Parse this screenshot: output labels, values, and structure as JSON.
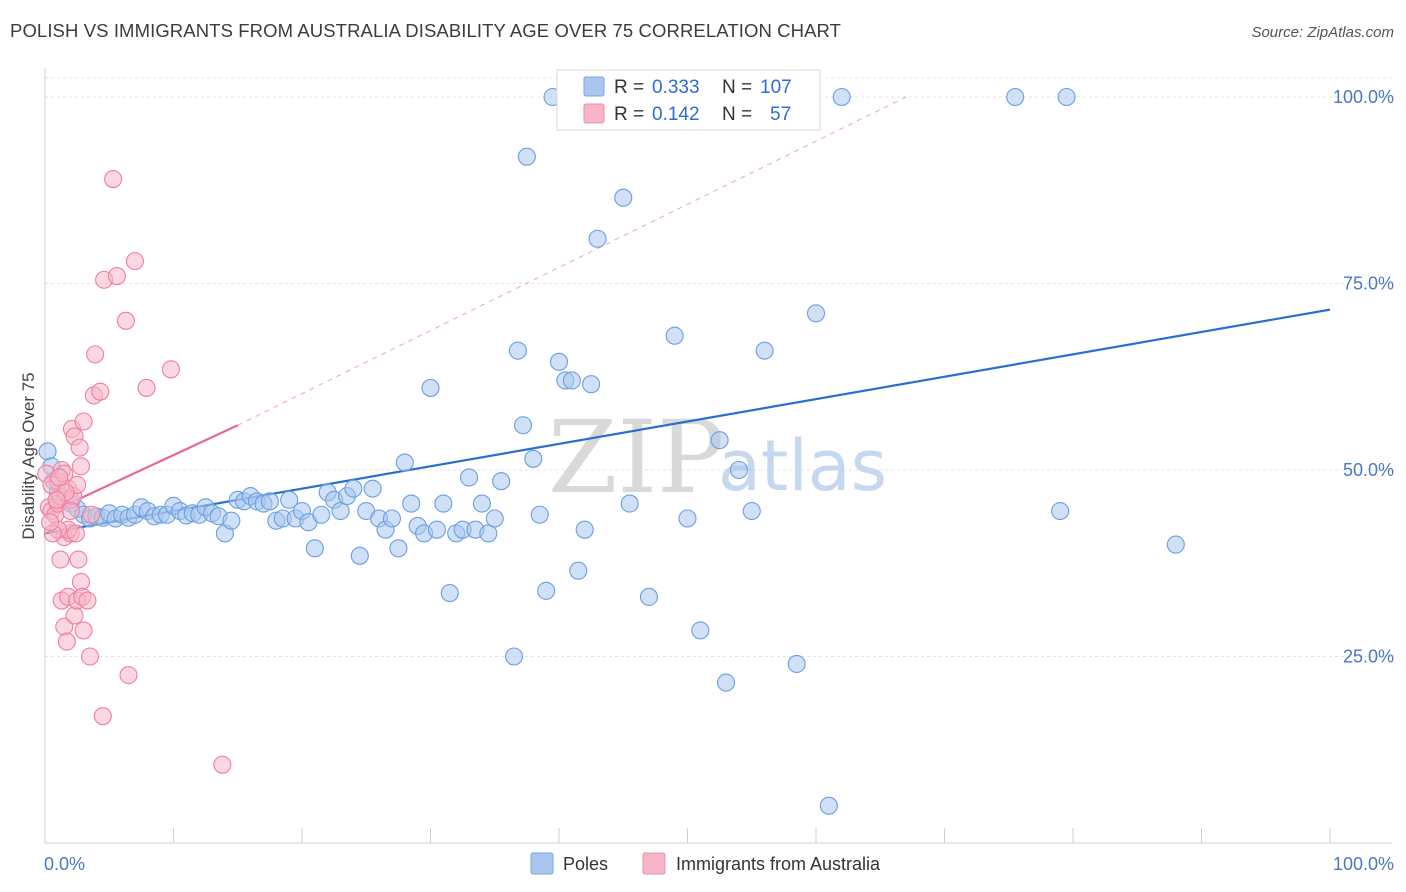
{
  "title": "POLISH VS IMMIGRANTS FROM AUSTRALIA DISABILITY AGE OVER 75 CORRELATION CHART",
  "source": "Source: ZipAtlas.com",
  "watermark": {
    "part1": "ZIP",
    "part2": "atlas"
  },
  "legend": {
    "r_label": "R =",
    "n_label": "N =",
    "rows": [
      {
        "r": "0.333",
        "n": "107",
        "color": "#a9c7ee"
      },
      {
        "r": "0.142",
        "n": "57",
        "color": "#f6b6c8"
      }
    ]
  },
  "bottom_legend": [
    {
      "label": "Poles",
      "color": "#a9c7ee"
    },
    {
      "label": "Immigrants from Australia",
      "color": "#f6b6c8"
    }
  ],
  "chart_data": {
    "type": "scatter",
    "title": "POLISH VS IMMIGRANTS FROM AUSTRALIA DISABILITY AGE OVER 75 CORRELATION CHART",
    "xlabel": "",
    "ylabel": "Disability Age Over 75",
    "xlim": [
      0,
      100
    ],
    "ylim": [
      0,
      100
    ],
    "x_tick_labels": [
      "0.0%",
      "100.0%"
    ],
    "y_tick_labels": [
      "100.0%",
      "75.0%",
      "50.0%",
      "25.0%"
    ],
    "y_tick_values": [
      100,
      75,
      50,
      25
    ],
    "grid": true,
    "series": [
      {
        "name": "Poles",
        "color": "#6a9fe0",
        "fill": "#a9c7ee",
        "trend": {
          "x": [
            0,
            100
          ],
          "y": [
            41.5,
            71.5
          ],
          "color": "#2a6fd0",
          "dashed_extension": false
        },
        "points": [
          [
            0.2,
            52.5
          ],
          [
            0.5,
            50.5
          ],
          [
            0.7,
            48.5
          ],
          [
            1.0,
            47.0
          ],
          [
            1.5,
            46.0
          ],
          [
            2.0,
            45.5
          ],
          [
            2.5,
            44.8
          ],
          [
            3.0,
            44.0
          ],
          [
            3.5,
            43.5
          ],
          [
            4.0,
            43.8
          ],
          [
            4.5,
            43.6
          ],
          [
            5.0,
            44.2
          ],
          [
            5.5,
            43.5
          ],
          [
            6.0,
            44.0
          ],
          [
            6.5,
            43.6
          ],
          [
            7.0,
            44.0
          ],
          [
            7.5,
            45.0
          ],
          [
            8.0,
            44.5
          ],
          [
            8.5,
            43.8
          ],
          [
            9.0,
            44.0
          ],
          [
            9.5,
            44.0
          ],
          [
            10.0,
            45.2
          ],
          [
            10.5,
            44.5
          ],
          [
            11.0,
            43.9
          ],
          [
            11.5,
            44.2
          ],
          [
            12.0,
            44.0
          ],
          [
            12.5,
            45.0
          ],
          [
            13.0,
            44.2
          ],
          [
            13.5,
            43.8
          ],
          [
            14.0,
            41.5
          ],
          [
            14.5,
            43.2
          ],
          [
            15.0,
            46.0
          ],
          [
            15.5,
            45.8
          ],
          [
            16.0,
            46.5
          ],
          [
            16.5,
            45.8
          ],
          [
            17.0,
            45.5
          ],
          [
            17.5,
            45.8
          ],
          [
            18.0,
            43.2
          ],
          [
            18.5,
            43.5
          ],
          [
            19.0,
            46.0
          ],
          [
            19.5,
            43.5
          ],
          [
            20.0,
            44.5
          ],
          [
            20.5,
            43.0
          ],
          [
            21.0,
            39.5
          ],
          [
            21.5,
            44.0
          ],
          [
            22.0,
            47.0
          ],
          [
            22.5,
            46.0
          ],
          [
            23.0,
            44.5
          ],
          [
            23.5,
            46.5
          ],
          [
            24.0,
            47.5
          ],
          [
            24.5,
            38.5
          ],
          [
            25.0,
            44.5
          ],
          [
            25.5,
            47.5
          ],
          [
            26.0,
            43.5
          ],
          [
            26.5,
            42.0
          ],
          [
            27.0,
            43.5
          ],
          [
            27.5,
            39.5
          ],
          [
            28.0,
            51.0
          ],
          [
            28.5,
            45.5
          ],
          [
            29.0,
            42.5
          ],
          [
            29.5,
            41.5
          ],
          [
            30.0,
            61.0
          ],
          [
            30.5,
            42.0
          ],
          [
            31.0,
            45.5
          ],
          [
            31.5,
            33.5
          ],
          [
            32.0,
            41.5
          ],
          [
            32.5,
            42.0
          ],
          [
            33.0,
            49.0
          ],
          [
            33.5,
            42.0
          ],
          [
            34.0,
            45.5
          ],
          [
            34.5,
            41.5
          ],
          [
            35.0,
            43.5
          ],
          [
            35.5,
            48.5
          ],
          [
            36.5,
            25.0
          ],
          [
            36.8,
            66.0
          ],
          [
            37.2,
            56.0
          ],
          [
            37.5,
            92.0
          ],
          [
            38.0,
            51.5
          ],
          [
            38.5,
            44.0
          ],
          [
            39.0,
            33.8
          ],
          [
            40.0,
            64.5
          ],
          [
            40.5,
            62.0
          ],
          [
            41.0,
            62.0
          ],
          [
            41.5,
            36.5
          ],
          [
            42.0,
            42.0
          ],
          [
            42.5,
            61.5
          ],
          [
            43.0,
            81.0
          ],
          [
            45.0,
            86.5
          ],
          [
            45.5,
            45.5
          ],
          [
            47.0,
            33.0
          ],
          [
            49.0,
            68.0
          ],
          [
            50.0,
            43.5
          ],
          [
            51.0,
            28.5
          ],
          [
            52.5,
            54.0
          ],
          [
            53.0,
            21.5
          ],
          [
            54.0,
            50.0
          ],
          [
            55.0,
            44.5
          ],
          [
            56.0,
            66.0
          ],
          [
            58.5,
            24.0
          ],
          [
            60.0,
            71.0
          ],
          [
            61.0,
            5.0
          ],
          [
            62.0,
            100.0
          ],
          [
            75.5,
            100.0
          ],
          [
            79.5,
            100.0
          ],
          [
            79.0,
            44.5
          ],
          [
            88.0,
            40.0
          ],
          [
            39.5,
            100.0
          ],
          [
            41.5,
            100.0
          ],
          [
            53.5,
            100.0
          ]
        ]
      },
      {
        "name": "Immigrants from Australia",
        "color": "#ef7fa0",
        "fill": "#f6b6c8",
        "trend": {
          "x": [
            0,
            15
          ],
          "y": [
            44.0,
            56.0
          ],
          "color": "#e86690",
          "dashed_extension": true,
          "extension_to": [
            67,
            100
          ]
        },
        "points": [
          [
            0.1,
            49.5
          ],
          [
            0.3,
            45.0
          ],
          [
            0.5,
            44.5
          ],
          [
            0.8,
            44.0
          ],
          [
            1.0,
            45.5
          ],
          [
            1.2,
            46.5
          ],
          [
            1.5,
            41.0
          ],
          [
            1.0,
            48.5
          ],
          [
            1.3,
            50.0
          ],
          [
            1.5,
            49.5
          ],
          [
            1.8,
            47.5
          ],
          [
            2.0,
            46.0
          ],
          [
            2.2,
            46.5
          ],
          [
            2.5,
            48.0
          ],
          [
            2.0,
            44.5
          ],
          [
            1.2,
            38.0
          ],
          [
            1.3,
            32.5
          ],
          [
            1.5,
            29.0
          ],
          [
            1.7,
            27.0
          ],
          [
            1.8,
            33.0
          ],
          [
            2.3,
            30.5
          ],
          [
            2.5,
            32.5
          ],
          [
            2.6,
            38.0
          ],
          [
            2.8,
            35.0
          ],
          [
            2.9,
            33.0
          ],
          [
            3.0,
            28.5
          ],
          [
            3.3,
            32.5
          ],
          [
            3.5,
            25.0
          ],
          [
            2.0,
            41.5
          ],
          [
            1.8,
            42.0
          ],
          [
            1.0,
            42.0
          ],
          [
            0.6,
            41.5
          ],
          [
            2.1,
            55.5
          ],
          [
            2.3,
            54.5
          ],
          [
            2.7,
            53.0
          ],
          [
            2.8,
            50.5
          ],
          [
            3.0,
            56.5
          ],
          [
            3.8,
            60.0
          ],
          [
            4.3,
            60.5
          ],
          [
            3.9,
            65.5
          ],
          [
            4.6,
            75.5
          ],
          [
            5.6,
            76.0
          ],
          [
            7.0,
            78.0
          ],
          [
            6.3,
            70.0
          ],
          [
            7.9,
            61.0
          ],
          [
            9.8,
            63.5
          ],
          [
            5.3,
            89.0
          ],
          [
            6.5,
            22.5
          ],
          [
            4.5,
            17.0
          ],
          [
            13.8,
            10.5
          ],
          [
            0.5,
            48.0
          ],
          [
            1.6,
            47.0
          ],
          [
            0.9,
            46.0
          ],
          [
            0.4,
            43.0
          ],
          [
            2.4,
            41.5
          ],
          [
            3.6,
            44.0
          ],
          [
            1.1,
            49.0
          ]
        ]
      }
    ]
  }
}
